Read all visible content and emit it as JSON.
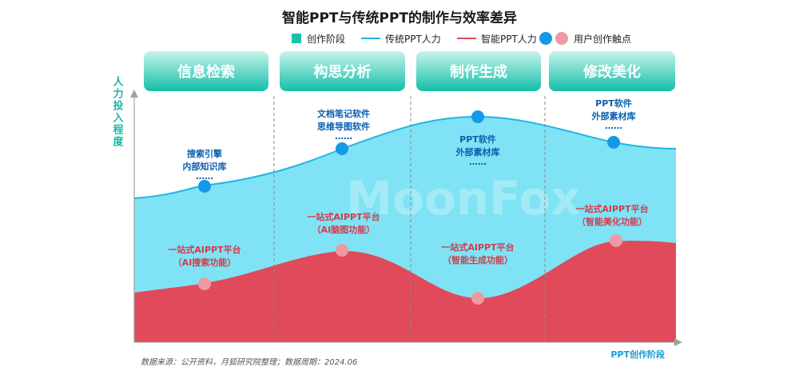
{
  "chart_data": {
    "type": "area",
    "title": "智能PPT与传统PPT的制作与效率差异",
    "legend": {
      "stage": "创作阶段",
      "traditional": "传统PPT人力",
      "smart": "智能PPT人力",
      "touchpoint": "用户创作触点"
    },
    "ylabel": "人力投入程度",
    "xlabel": "PPT创作阶段",
    "stages": [
      "信息检索",
      "构思分析",
      "制作生成",
      "修改美化"
    ],
    "series": [
      {
        "name": "传统PPT人力",
        "color": "#1fb5e6",
        "fill": "#7fe3f5"
      },
      {
        "name": "智能PPT人力",
        "color": "#e04a5a",
        "fill": "#e04a5a"
      }
    ],
    "traditional_points": [
      {
        "label": [
          "搜索引擎",
          "内部知识库"
        ],
        "more": "……"
      },
      {
        "label": [
          "文档笔记软件",
          "思维导图软件"
        ],
        "more": "……"
      },
      {
        "label": [
          "PPT软件",
          "外部素材库"
        ],
        "more": "……"
      },
      {
        "label": [
          "PPT软件",
          "外部素材库"
        ],
        "more": "……"
      }
    ],
    "smart_points": [
      {
        "label": [
          "一站式AIPPT平台",
          "（AI搜索功能）"
        ]
      },
      {
        "label": [
          "一站式AIPPT平台",
          "（AI脑图功能）"
        ]
      },
      {
        "label": [
          "一站式AIPPT平台",
          "（智能生成功能）"
        ]
      },
      {
        "label": [
          "一站式AIPPT平台",
          "（智能美化功能）"
        ]
      }
    ],
    "watermark": "MoonFox",
    "source": "数据来源：公开资料，月狐研究院整理；数据周期：2024.06"
  }
}
